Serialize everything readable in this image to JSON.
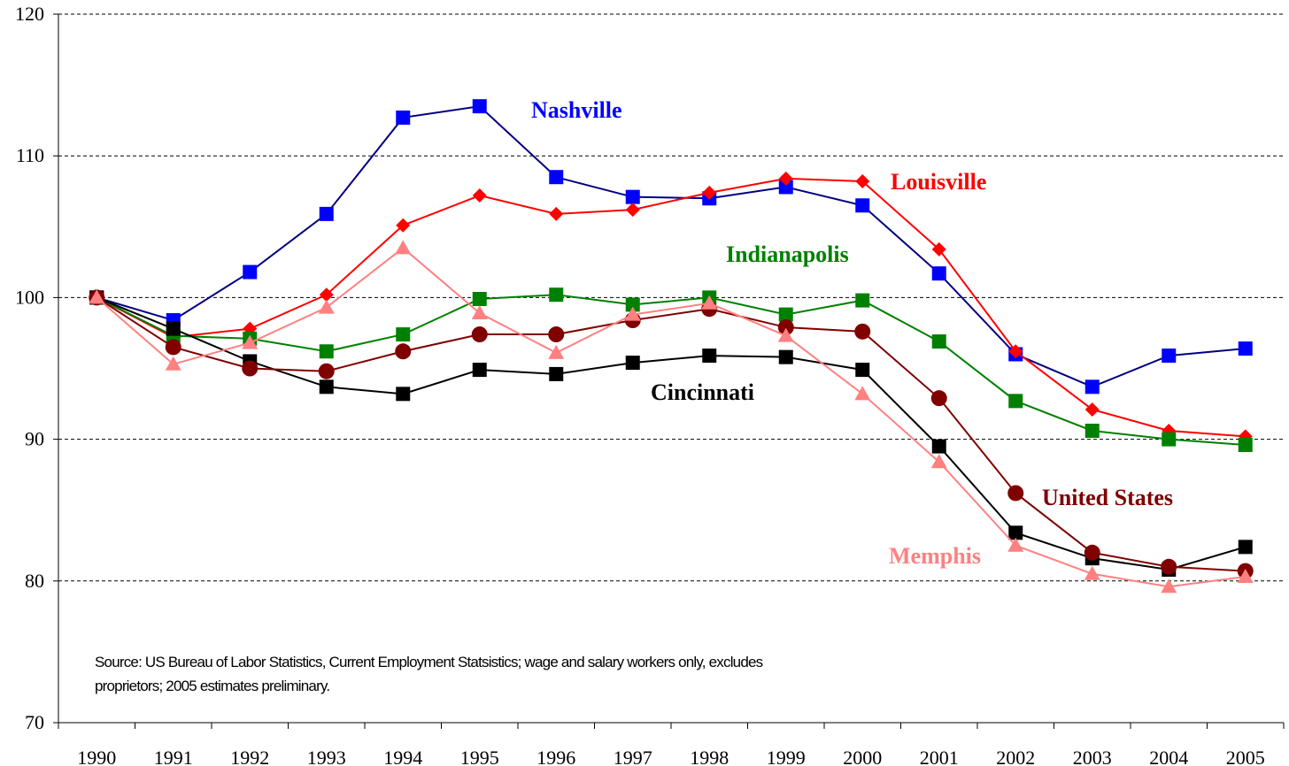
{
  "chart_data": {
    "type": "line",
    "categories": [
      "1990",
      "1991",
      "1992",
      "1993",
      "1994",
      "1995",
      "1996",
      "1997",
      "1998",
      "1999",
      "2000",
      "2001",
      "2002",
      "2003",
      "2004",
      "2005"
    ],
    "series": [
      {
        "name": "Nashville",
        "color": "#0000ff",
        "line_color": "#000080",
        "marker": "square",
        "values": [
          100,
          98.4,
          101.8,
          105.9,
          112.7,
          113.5,
          108.5,
          107.1,
          107.0,
          107.8,
          106.5,
          101.7,
          96.0,
          93.7,
          95.9,
          96.4
        ]
      },
      {
        "name": "Louisville",
        "color": "#ff0000",
        "line_color": "#ff0000",
        "marker": "diamond",
        "values": [
          100,
          97.2,
          97.8,
          100.2,
          105.1,
          107.2,
          105.9,
          106.2,
          107.4,
          108.4,
          108.2,
          103.4,
          96.2,
          92.1,
          90.6,
          90.2
        ]
      },
      {
        "name": "Indianapolis",
        "color": "#008000",
        "line_color": "#008000",
        "marker": "square",
        "values": [
          100,
          97.3,
          97.1,
          96.2,
          97.4,
          99.9,
          100.2,
          99.5,
          100.0,
          98.8,
          99.8,
          96.9,
          92.7,
          90.6,
          90.0,
          89.6
        ]
      },
      {
        "name": "Cincinnati",
        "color": "#000000",
        "line_color": "#000000",
        "marker": "square",
        "values": [
          100,
          97.8,
          95.5,
          93.7,
          93.2,
          94.9,
          94.6,
          95.4,
          95.9,
          95.8,
          94.9,
          89.5,
          83.4,
          81.6,
          80.8,
          82.4
        ]
      },
      {
        "name": "United States",
        "color": "#800000",
        "line_color": "#800000",
        "marker": "circle",
        "values": [
          100,
          96.5,
          95.0,
          94.8,
          96.2,
          97.4,
          97.4,
          98.4,
          99.2,
          97.9,
          97.6,
          92.9,
          86.2,
          82.0,
          81.0,
          80.7
        ]
      },
      {
        "name": "Memphis",
        "color": "#ff8080",
        "line_color": "#ff8080",
        "marker": "triangle",
        "values": [
          100,
          95.3,
          96.8,
          99.3,
          103.5,
          98.9,
          96.1,
          98.8,
          99.6,
          97.3,
          93.2,
          88.4,
          82.5,
          80.5,
          79.6,
          80.3
        ]
      }
    ],
    "ylim": [
      70,
      120
    ],
    "yticks": [
      70,
      80,
      90,
      100,
      110,
      120
    ],
    "grid": true,
    "source_note": [
      "Source: US Bureau of Labor Statistics, Current Employment Statsistics; wage and salary workers only, excludes",
      "proprietors; 2005 estimates preliminary."
    ]
  }
}
